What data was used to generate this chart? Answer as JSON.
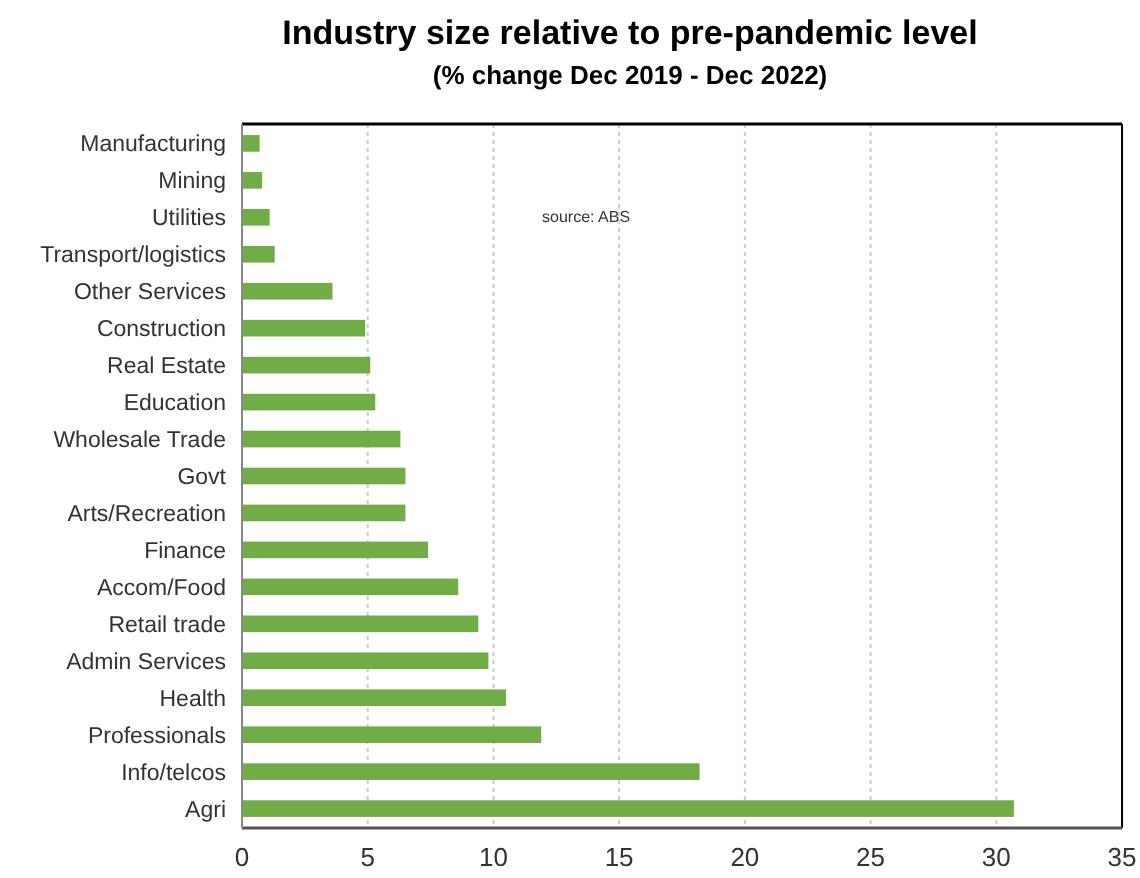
{
  "chart_data": {
    "type": "bar",
    "orientation": "horizontal",
    "title": "Industry size relative to pre-pandemic level",
    "subtitle": "(% change Dec 2019 - Dec 2022)",
    "categories": [
      "Manufacturing",
      "Mining",
      "Utilities",
      "Transport/logistics",
      "Other Services",
      "Construction",
      "Real Estate",
      "Education",
      "Wholesale Trade",
      "Govt",
      "Arts/Recreation",
      "Finance",
      "Accom/Food",
      "Retail trade",
      "Admin Services",
      "Health",
      "Professionals",
      "Info/telcos",
      "Agri"
    ],
    "values": [
      0.7,
      0.8,
      1.1,
      1.3,
      3.6,
      4.9,
      5.1,
      5.3,
      6.3,
      6.5,
      6.5,
      7.4,
      8.6,
      9.4,
      9.8,
      10.5,
      11.9,
      18.2,
      30.7
    ],
    "color": "#70ad47",
    "xlim": [
      0,
      35
    ],
    "xticks": [
      0,
      5,
      10,
      15,
      20,
      25,
      30,
      35
    ],
    "grid": "x",
    "annotations": [
      "source:  ABS"
    ]
  }
}
